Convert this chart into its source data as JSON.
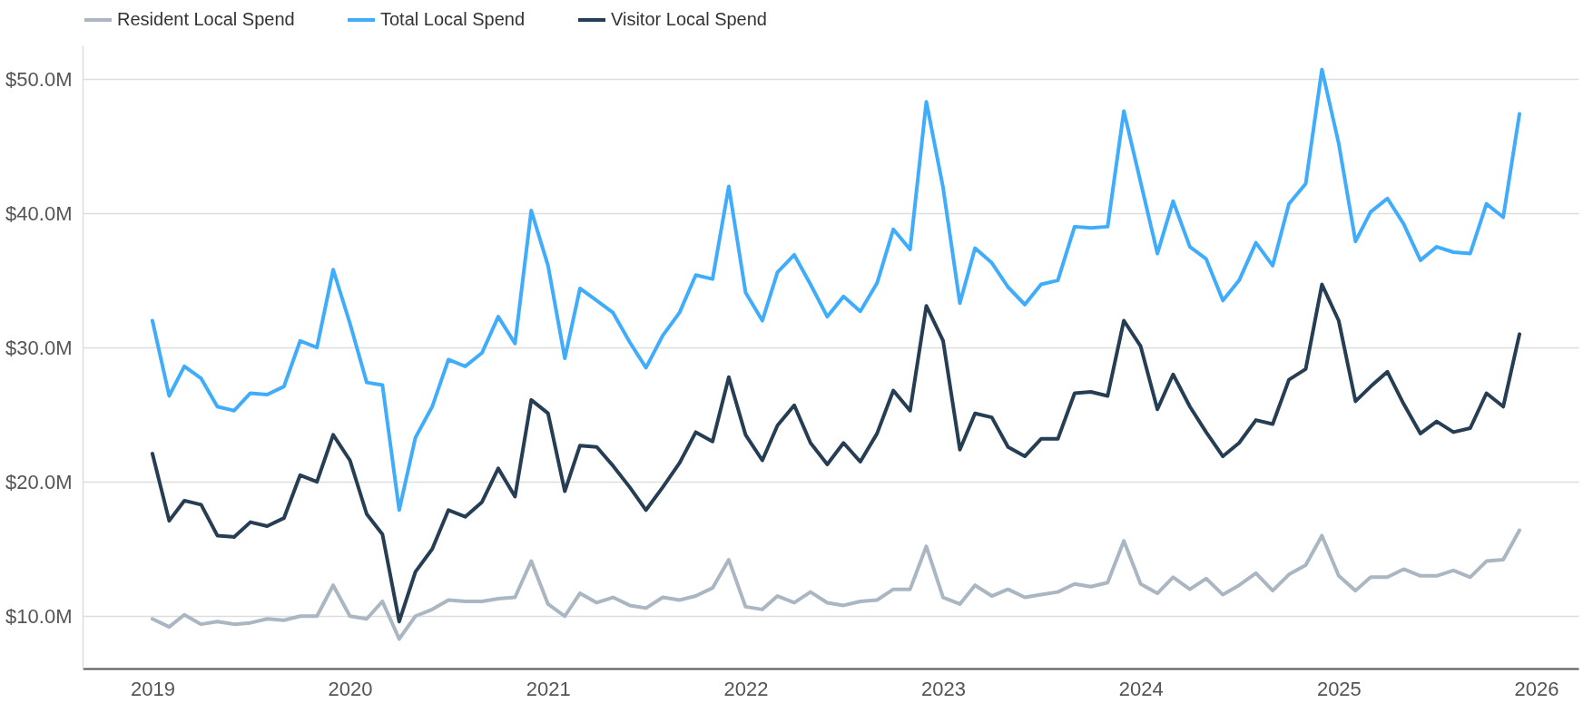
{
  "chart_data": {
    "type": "line",
    "x": [
      "2019-01",
      "2019-02",
      "2019-03",
      "2019-04",
      "2019-05",
      "2019-06",
      "2019-07",
      "2019-08",
      "2019-09",
      "2019-10",
      "2019-11",
      "2019-12",
      "2020-01",
      "2020-02",
      "2020-03",
      "2020-04",
      "2020-05",
      "2020-06",
      "2020-07",
      "2020-08",
      "2020-09",
      "2020-10",
      "2020-11",
      "2020-12",
      "2021-01",
      "2021-02",
      "2021-03",
      "2021-04",
      "2021-05",
      "2021-06",
      "2021-07",
      "2021-08",
      "2021-09",
      "2021-10",
      "2021-11",
      "2021-12",
      "2022-01",
      "2022-02",
      "2022-03",
      "2022-04",
      "2022-05",
      "2022-06",
      "2022-07",
      "2022-08",
      "2022-09",
      "2022-10",
      "2022-11",
      "2022-12",
      "2023-01",
      "2023-02",
      "2023-03",
      "2023-04",
      "2023-05",
      "2023-06",
      "2023-07",
      "2023-08",
      "2023-09",
      "2023-10",
      "2023-11",
      "2023-12",
      "2024-01",
      "2024-02",
      "2024-03",
      "2024-04",
      "2024-05",
      "2024-06",
      "2024-07",
      "2024-08",
      "2024-09",
      "2024-10",
      "2024-11",
      "2024-12",
      "2025-01",
      "2025-02",
      "2025-03",
      "2025-04",
      "2025-05",
      "2025-06",
      "2025-07",
      "2025-08",
      "2025-09",
      "2025-10",
      "2025-11",
      "2025-12"
    ],
    "series": [
      {
        "name": "Resident Local Spend",
        "color": "#aab7c2",
        "values": [
          9.8,
          9.2,
          10.1,
          9.4,
          9.6,
          9.4,
          9.5,
          9.8,
          9.7,
          10.0,
          10.0,
          12.3,
          10.0,
          9.8,
          11.1,
          8.3,
          10.0,
          10.5,
          11.2,
          11.1,
          11.1,
          11.3,
          11.4,
          14.1,
          10.9,
          10.0,
          11.7,
          11.0,
          11.4,
          10.8,
          10.6,
          11.4,
          11.2,
          11.5,
          12.1,
          14.2,
          10.7,
          10.5,
          11.5,
          11.0,
          11.8,
          11.0,
          10.8,
          11.1,
          11.2,
          12.0,
          12.0,
          15.2,
          11.4,
          10.9,
          12.3,
          11.5,
          12.0,
          11.4,
          11.6,
          11.8,
          12.4,
          12.2,
          12.5,
          15.6,
          12.4,
          11.7,
          12.9,
          12.0,
          12.8,
          11.6,
          12.3,
          13.2,
          11.9,
          13.1,
          13.8,
          16.0,
          13.0,
          11.9,
          12.9,
          12.9,
          13.5,
          13.0,
          13.0,
          13.4,
          12.9,
          14.1,
          14.2,
          16.4
        ]
      },
      {
        "name": "Total Local Spend",
        "color": "#40adfc",
        "values": [
          32.0,
          26.4,
          28.6,
          27.7,
          25.6,
          25.3,
          26.6,
          26.5,
          27.1,
          30.5,
          30.0,
          35.8,
          31.8,
          27.4,
          27.2,
          17.9,
          23.3,
          25.6,
          29.1,
          28.6,
          29.6,
          32.3,
          30.3,
          40.2,
          36.1,
          29.2,
          34.4,
          33.5,
          32.6,
          30.4,
          28.5,
          30.9,
          32.6,
          35.4,
          35.1,
          42.0,
          34.1,
          32.0,
          35.6,
          36.9,
          34.7,
          32.3,
          33.8,
          32.7,
          34.8,
          38.8,
          37.3,
          48.3,
          41.9,
          33.3,
          37.4,
          36.3,
          34.5,
          33.2,
          34.7,
          35.0,
          39.0,
          38.9,
          39.0,
          47.6,
          42.3,
          37.0,
          40.9,
          37.5,
          36.6,
          33.5,
          35.0,
          37.8,
          36.1,
          40.7,
          42.2,
          50.7,
          45.2,
          37.9,
          40.1,
          41.1,
          39.2,
          36.5,
          37.5,
          37.1,
          37.0,
          40.7,
          39.7,
          47.4
        ]
      },
      {
        "name": "Visitor Local Spend",
        "color": "#263e54",
        "values": [
          22.1,
          17.1,
          18.6,
          18.3,
          16.0,
          15.9,
          17.0,
          16.7,
          17.3,
          20.5,
          20.0,
          23.5,
          21.6,
          17.6,
          16.1,
          9.6,
          13.3,
          15.0,
          17.9,
          17.4,
          18.5,
          21.0,
          18.9,
          26.1,
          25.1,
          19.3,
          22.7,
          22.6,
          21.2,
          19.6,
          17.9,
          19.6,
          21.4,
          23.7,
          23.0,
          27.8,
          23.5,
          21.6,
          24.2,
          25.7,
          22.9,
          21.3,
          22.9,
          21.5,
          23.6,
          26.8,
          25.3,
          33.1,
          30.5,
          22.4,
          25.1,
          24.8,
          22.6,
          21.9,
          23.2,
          23.2,
          26.6,
          26.7,
          26.4,
          32.0,
          30.1,
          25.4,
          28.0,
          25.6,
          23.7,
          21.9,
          22.9,
          24.6,
          24.3,
          27.6,
          28.4,
          34.7,
          32.0,
          26.0,
          27.1,
          28.2,
          25.8,
          23.6,
          24.5,
          23.7,
          24.0,
          26.6,
          25.6,
          31.0
        ]
      }
    ],
    "xlim": [
      "2018-08-25",
      "2026-03-20"
    ],
    "xticks": [
      "2019",
      "2020",
      "2021",
      "2022",
      "2023",
      "2024",
      "2025",
      "2026"
    ],
    "ylim": [
      6.1,
      52.5
    ],
    "yticks": [
      {
        "value": 10,
        "label": "$10.0M"
      },
      {
        "value": 20,
        "label": "$20.0M"
      },
      {
        "value": 30,
        "label": "$30.0M"
      },
      {
        "value": 40,
        "label": "$40.0M"
      },
      {
        "value": 50,
        "label": "$50.0M"
      }
    ],
    "grid": "y",
    "legend": "top",
    "marker": "none",
    "line_style": "solid"
  }
}
